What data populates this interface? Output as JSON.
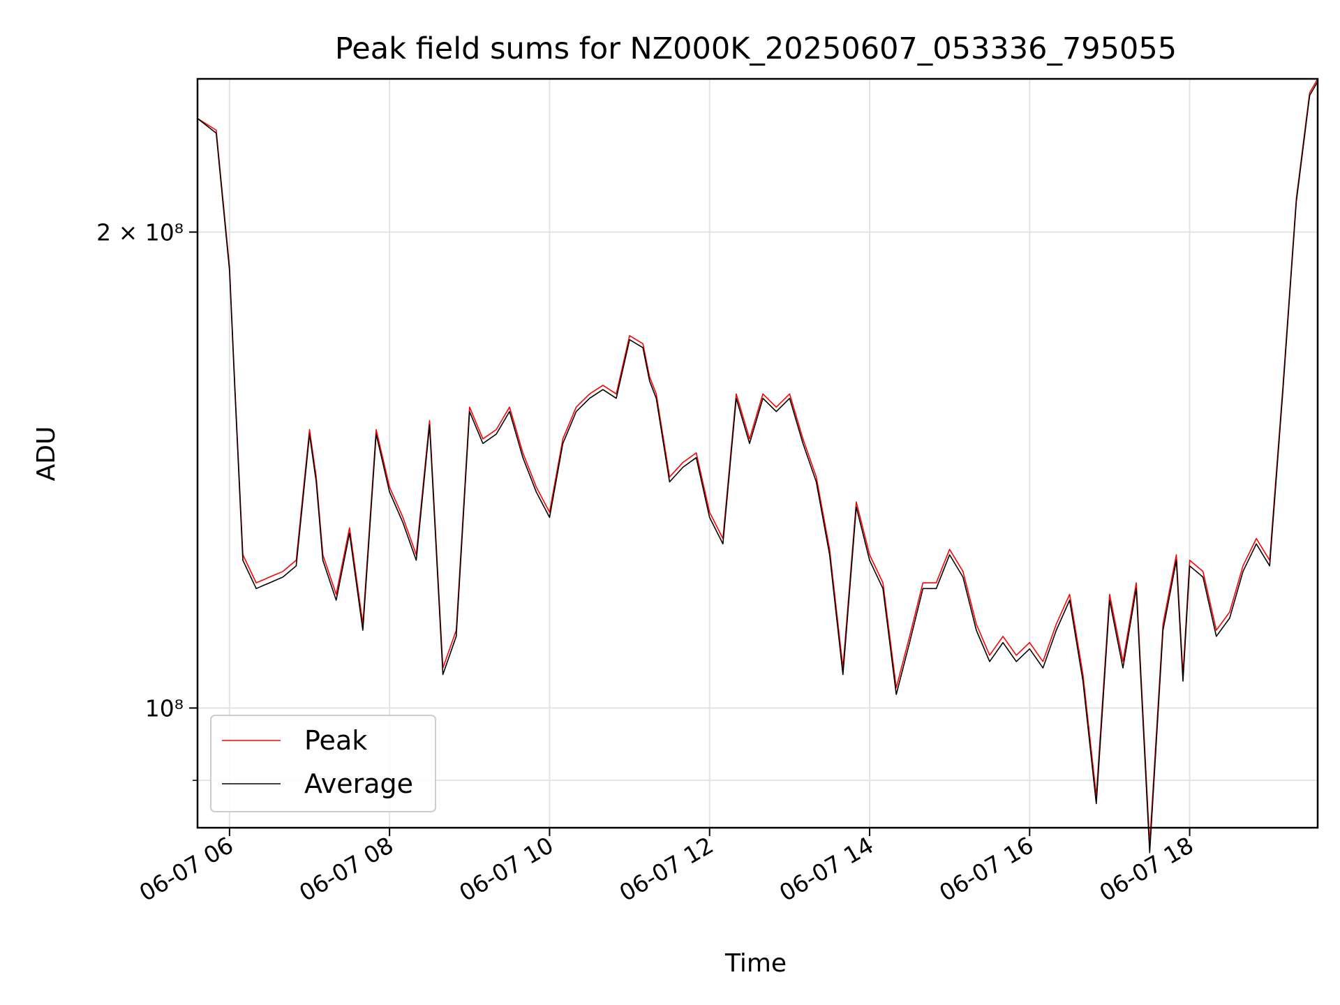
{
  "chart_data": {
    "type": "line",
    "title": "Peak field sums for NZ000K_20250607_053336_795055",
    "xlabel": "Time",
    "ylabel": "ADU",
    "y_scale": "log",
    "xlim": [
      "2025-06-07 05:36",
      "2025-06-07 19:36"
    ],
    "ylim": [
      84000000,
      250000000
    ],
    "x_ticks": [
      "06-07 06",
      "06-07 08",
      "06-07 10",
      "06-07 12",
      "06-07 14",
      "06-07 16",
      "06-07 18"
    ],
    "y_ticks": [
      {
        "value": 200000000,
        "label": "2 × 10⁸"
      },
      {
        "value": 100000000,
        "label": "10⁸"
      }
    ],
    "y_minor_ticks": [
      90000000
    ],
    "grid": true,
    "legend_position": "lower-left",
    "colors": {
      "Peak": "#ff0000",
      "Average": "#000000"
    },
    "x": [
      "05:36",
      "05:50",
      "06:00",
      "06:04",
      "06:10",
      "06:20",
      "06:30",
      "06:40",
      "06:50",
      "07:00",
      "07:05",
      "07:10",
      "07:20",
      "07:30",
      "07:40",
      "07:50",
      "08:00",
      "08:10",
      "08:20",
      "08:30",
      "08:40",
      "08:50",
      "09:00",
      "09:10",
      "09:20",
      "09:30",
      "09:40",
      "09:50",
      "10:00",
      "10:10",
      "10:20",
      "10:30",
      "10:40",
      "10:50",
      "11:00",
      "11:10",
      "11:15",
      "11:20",
      "11:30",
      "11:40",
      "11:50",
      "12:00",
      "12:10",
      "12:20",
      "12:30",
      "12:40",
      "12:50",
      "13:00",
      "13:10",
      "13:20",
      "13:30",
      "13:40",
      "13:50",
      "14:00",
      "14:10",
      "14:20",
      "14:30",
      "14:40",
      "14:50",
      "15:00",
      "15:10",
      "15:20",
      "15:30",
      "15:40",
      "15:50",
      "16:00",
      "16:10",
      "16:20",
      "16:30",
      "16:40",
      "16:50",
      "17:00",
      "17:10",
      "17:20",
      "17:30",
      "17:40",
      "17:50",
      "17:55",
      "18:00",
      "18:10",
      "18:20",
      "18:30",
      "18:40",
      "18:50",
      "19:00",
      "19:10",
      "19:20",
      "19:30",
      "19:36"
    ],
    "series": [
      {
        "name": "Peak",
        "values": [
          236000000,
          232000000,
          190000000,
          160000000,
          125000000,
          120000000,
          121000000,
          122000000,
          124000000,
          150000000,
          140000000,
          125000000,
          118000000,
          130000000,
          113000000,
          150000000,
          138000000,
          132000000,
          125000000,
          152000000,
          106000000,
          112000000,
          155000000,
          148000000,
          150000000,
          155000000,
          145000000,
          138000000,
          133000000,
          148000000,
          155000000,
          158000000,
          160000000,
          158000000,
          172000000,
          170000000,
          162000000,
          158000000,
          140000000,
          143000000,
          145000000,
          133000000,
          128000000,
          158000000,
          148000000,
          158000000,
          155000000,
          158000000,
          148000000,
          140000000,
          126000000,
          106000000,
          135000000,
          125000000,
          120000000,
          103000000,
          111000000,
          120000000,
          120000000,
          126000000,
          122000000,
          113000000,
          108000000,
          111000000,
          108000000,
          110000000,
          107000000,
          113000000,
          118000000,
          105000000,
          88000000,
          118000000,
          107000000,
          120000000,
          82000000,
          113000000,
          125000000,
          105000000,
          124000000,
          122000000,
          112000000,
          115000000,
          123000000,
          128000000,
          124000000,
          160000000,
          210000000,
          245000000,
          250000000
        ]
      },
      {
        "name": "Average",
        "values": [
          236000000,
          231000000,
          189000000,
          159000000,
          124000000,
          119000000,
          120000000,
          121000000,
          123000000,
          149000000,
          139000000,
          124000000,
          117000000,
          129000000,
          112000000,
          149000000,
          137000000,
          131000000,
          124000000,
          151000000,
          105000000,
          111000000,
          154000000,
          147000000,
          149000000,
          154000000,
          144000000,
          137000000,
          132000000,
          147000000,
          154000000,
          157000000,
          159000000,
          157000000,
          171000000,
          169000000,
          161000000,
          157000000,
          139000000,
          142000000,
          144000000,
          132000000,
          127000000,
          157000000,
          147000000,
          157000000,
          154000000,
          157000000,
          147000000,
          139000000,
          125000000,
          105000000,
          134000000,
          124000000,
          119000000,
          102000000,
          110000000,
          119000000,
          119000000,
          125000000,
          121000000,
          112000000,
          107000000,
          110000000,
          107000000,
          109000000,
          106000000,
          112000000,
          117000000,
          104000000,
          87000000,
          117000000,
          106000000,
          119000000,
          81000000,
          112000000,
          124000000,
          104000000,
          123000000,
          121000000,
          111000000,
          114000000,
          122000000,
          127000000,
          123000000,
          159000000,
          209000000,
          244000000,
          249000000
        ]
      }
    ]
  }
}
